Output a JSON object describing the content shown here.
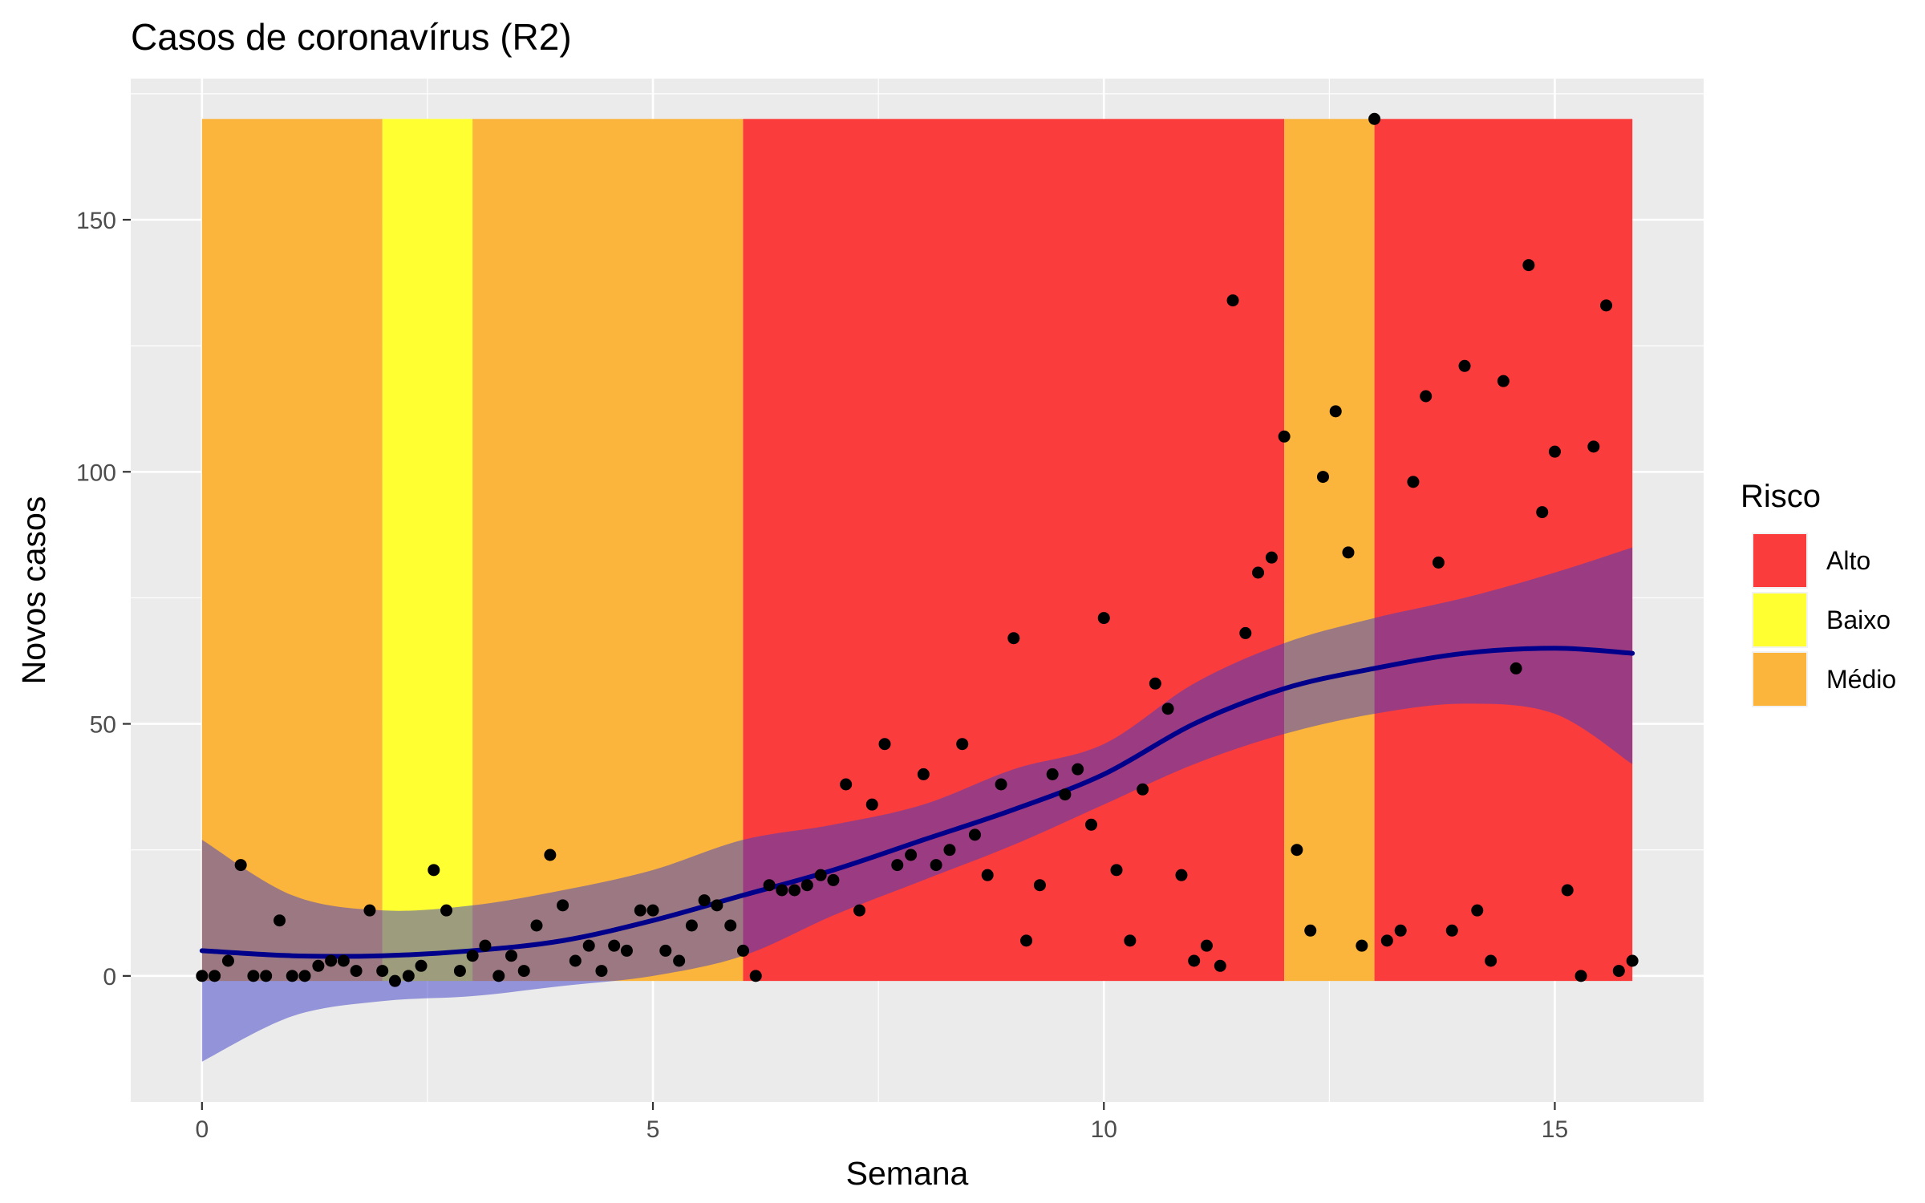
{
  "chart_data": {
    "type": "scatter",
    "title": "Casos de coronavírus (R2)",
    "xlabel": "Semana",
    "ylabel": "Novos casos",
    "xlim": [
      -0.79,
      16.65
    ],
    "ylim": [
      -25,
      178
    ],
    "x_ticks": [
      0,
      5,
      10,
      15
    ],
    "y_ticks": [
      0,
      50,
      100,
      150
    ],
    "x_tick_labels": [
      "0",
      "5",
      "10",
      "15"
    ],
    "y_tick_labels": [
      "0",
      "50",
      "100",
      "150"
    ],
    "grid": true,
    "background_color": "#ebebeb",
    "risk_bands": [
      {
        "x0": 0,
        "x1": 2,
        "risco": "Médio"
      },
      {
        "x0": 2,
        "x1": 3,
        "risco": "Baixo"
      },
      {
        "x0": 3,
        "x1": 6,
        "risco": "Médio"
      },
      {
        "x0": 6,
        "x1": 12,
        "risco": "Alto"
      },
      {
        "x0": 12,
        "x1": 13,
        "risco": "Médio"
      },
      {
        "x0": 13,
        "x1": 15.86,
        "risco": "Alto"
      }
    ],
    "band_ymin": -1,
    "band_ymax": 170,
    "risk_colors": {
      "Alto": "#fa3c3c",
      "Baixo": "#ffff32",
      "Médio": "#fbb43c"
    },
    "legend": {
      "title": "Risco",
      "position": "right",
      "items": [
        {
          "label": "Alto",
          "color": "#fa3c3c"
        },
        {
          "label": "Baixo",
          "color": "#ffff32"
        },
        {
          "label": "Médio",
          "color": "#fbb43c"
        }
      ]
    },
    "points": {
      "color": "#000000",
      "x": [
        0,
        0.14,
        0.29,
        0.43,
        0.57,
        0.71,
        0.86,
        1.0,
        1.14,
        1.29,
        1.43,
        1.57,
        1.71,
        1.86,
        2.0,
        2.14,
        2.29,
        2.43,
        2.57,
        2.71,
        2.86,
        3.0,
        3.14,
        3.29,
        3.43,
        3.57,
        3.71,
        3.86,
        4.0,
        4.14,
        4.29,
        4.43,
        4.57,
        4.71,
        4.86,
        5.0,
        5.14,
        5.29,
        5.43,
        5.57,
        5.71,
        5.86,
        6.0,
        6.14,
        6.29,
        6.43,
        6.57,
        6.71,
        6.86,
        7.0,
        7.14,
        7.29,
        7.43,
        7.57,
        7.71,
        7.86,
        8.0,
        8.14,
        8.29,
        8.43,
        8.57,
        8.71,
        8.86,
        9.0,
        9.14,
        9.29,
        9.43,
        9.57,
        9.71,
        9.86,
        10.0,
        10.14,
        10.29,
        10.43,
        10.57,
        10.71,
        10.86,
        11.0,
        11.14,
        11.29,
        11.43,
        11.57,
        11.71,
        11.86,
        12.0,
        12.14,
        12.29,
        12.43,
        12.57,
        12.71,
        12.86,
        13.0,
        13.14,
        13.29,
        13.43,
        13.57,
        13.71,
        13.86,
        14.0,
        14.14,
        14.29,
        14.43,
        14.57,
        14.71,
        14.86,
        15.0,
        15.14,
        15.29,
        15.43,
        15.57,
        15.71,
        15.86
      ],
      "y": [
        0,
        0,
        3,
        22,
        0,
        0,
        11,
        0,
        0,
        2,
        3,
        3,
        1,
        13,
        1,
        -1,
        0,
        2,
        21,
        13,
        1,
        4,
        6,
        0,
        4,
        1,
        10,
        24,
        14,
        3,
        6,
        1,
        6,
        5,
        13,
        13,
        5,
        3,
        10,
        15,
        14,
        10,
        5,
        0,
        18,
        17,
        17,
        18,
        20,
        19,
        38,
        13,
        34,
        46,
        22,
        24,
        40,
        22,
        25,
        46,
        28,
        20,
        38,
        67,
        7,
        18,
        40,
        36,
        41,
        30,
        71,
        21,
        7,
        37,
        58,
        53,
        20,
        3,
        6,
        2,
        134,
        68,
        80,
        83,
        107,
        25,
        9,
        99,
        112,
        84,
        6,
        170,
        7,
        9,
        98,
        115,
        82,
        9,
        121,
        13,
        3,
        118,
        61,
        141,
        92,
        104,
        17,
        0,
        105,
        133,
        1,
        3
      ]
    },
    "smooth": {
      "line_color": "#00008b",
      "ribbon_color": "#3c3cc8",
      "ribbon_opacity": 0.5,
      "x": [
        0,
        1,
        2,
        3,
        4,
        5,
        6,
        7,
        8,
        9,
        10,
        11,
        12,
        13,
        14,
        15,
        15.86
      ],
      "y": [
        5,
        4,
        4,
        5,
        7,
        11,
        16,
        21,
        27,
        33,
        40,
        50,
        57,
        61,
        64,
        65,
        64
      ],
      "ymin": [
        -17,
        -8,
        -5,
        -4,
        -2,
        0,
        4,
        12,
        19,
        26,
        34,
        42,
        48,
        52,
        54,
        52,
        42
      ],
      "ymax": [
        27,
        16,
        13,
        14,
        17,
        21,
        27,
        30,
        34,
        41,
        46,
        58,
        66,
        71,
        75,
        80,
        85
      ]
    }
  }
}
